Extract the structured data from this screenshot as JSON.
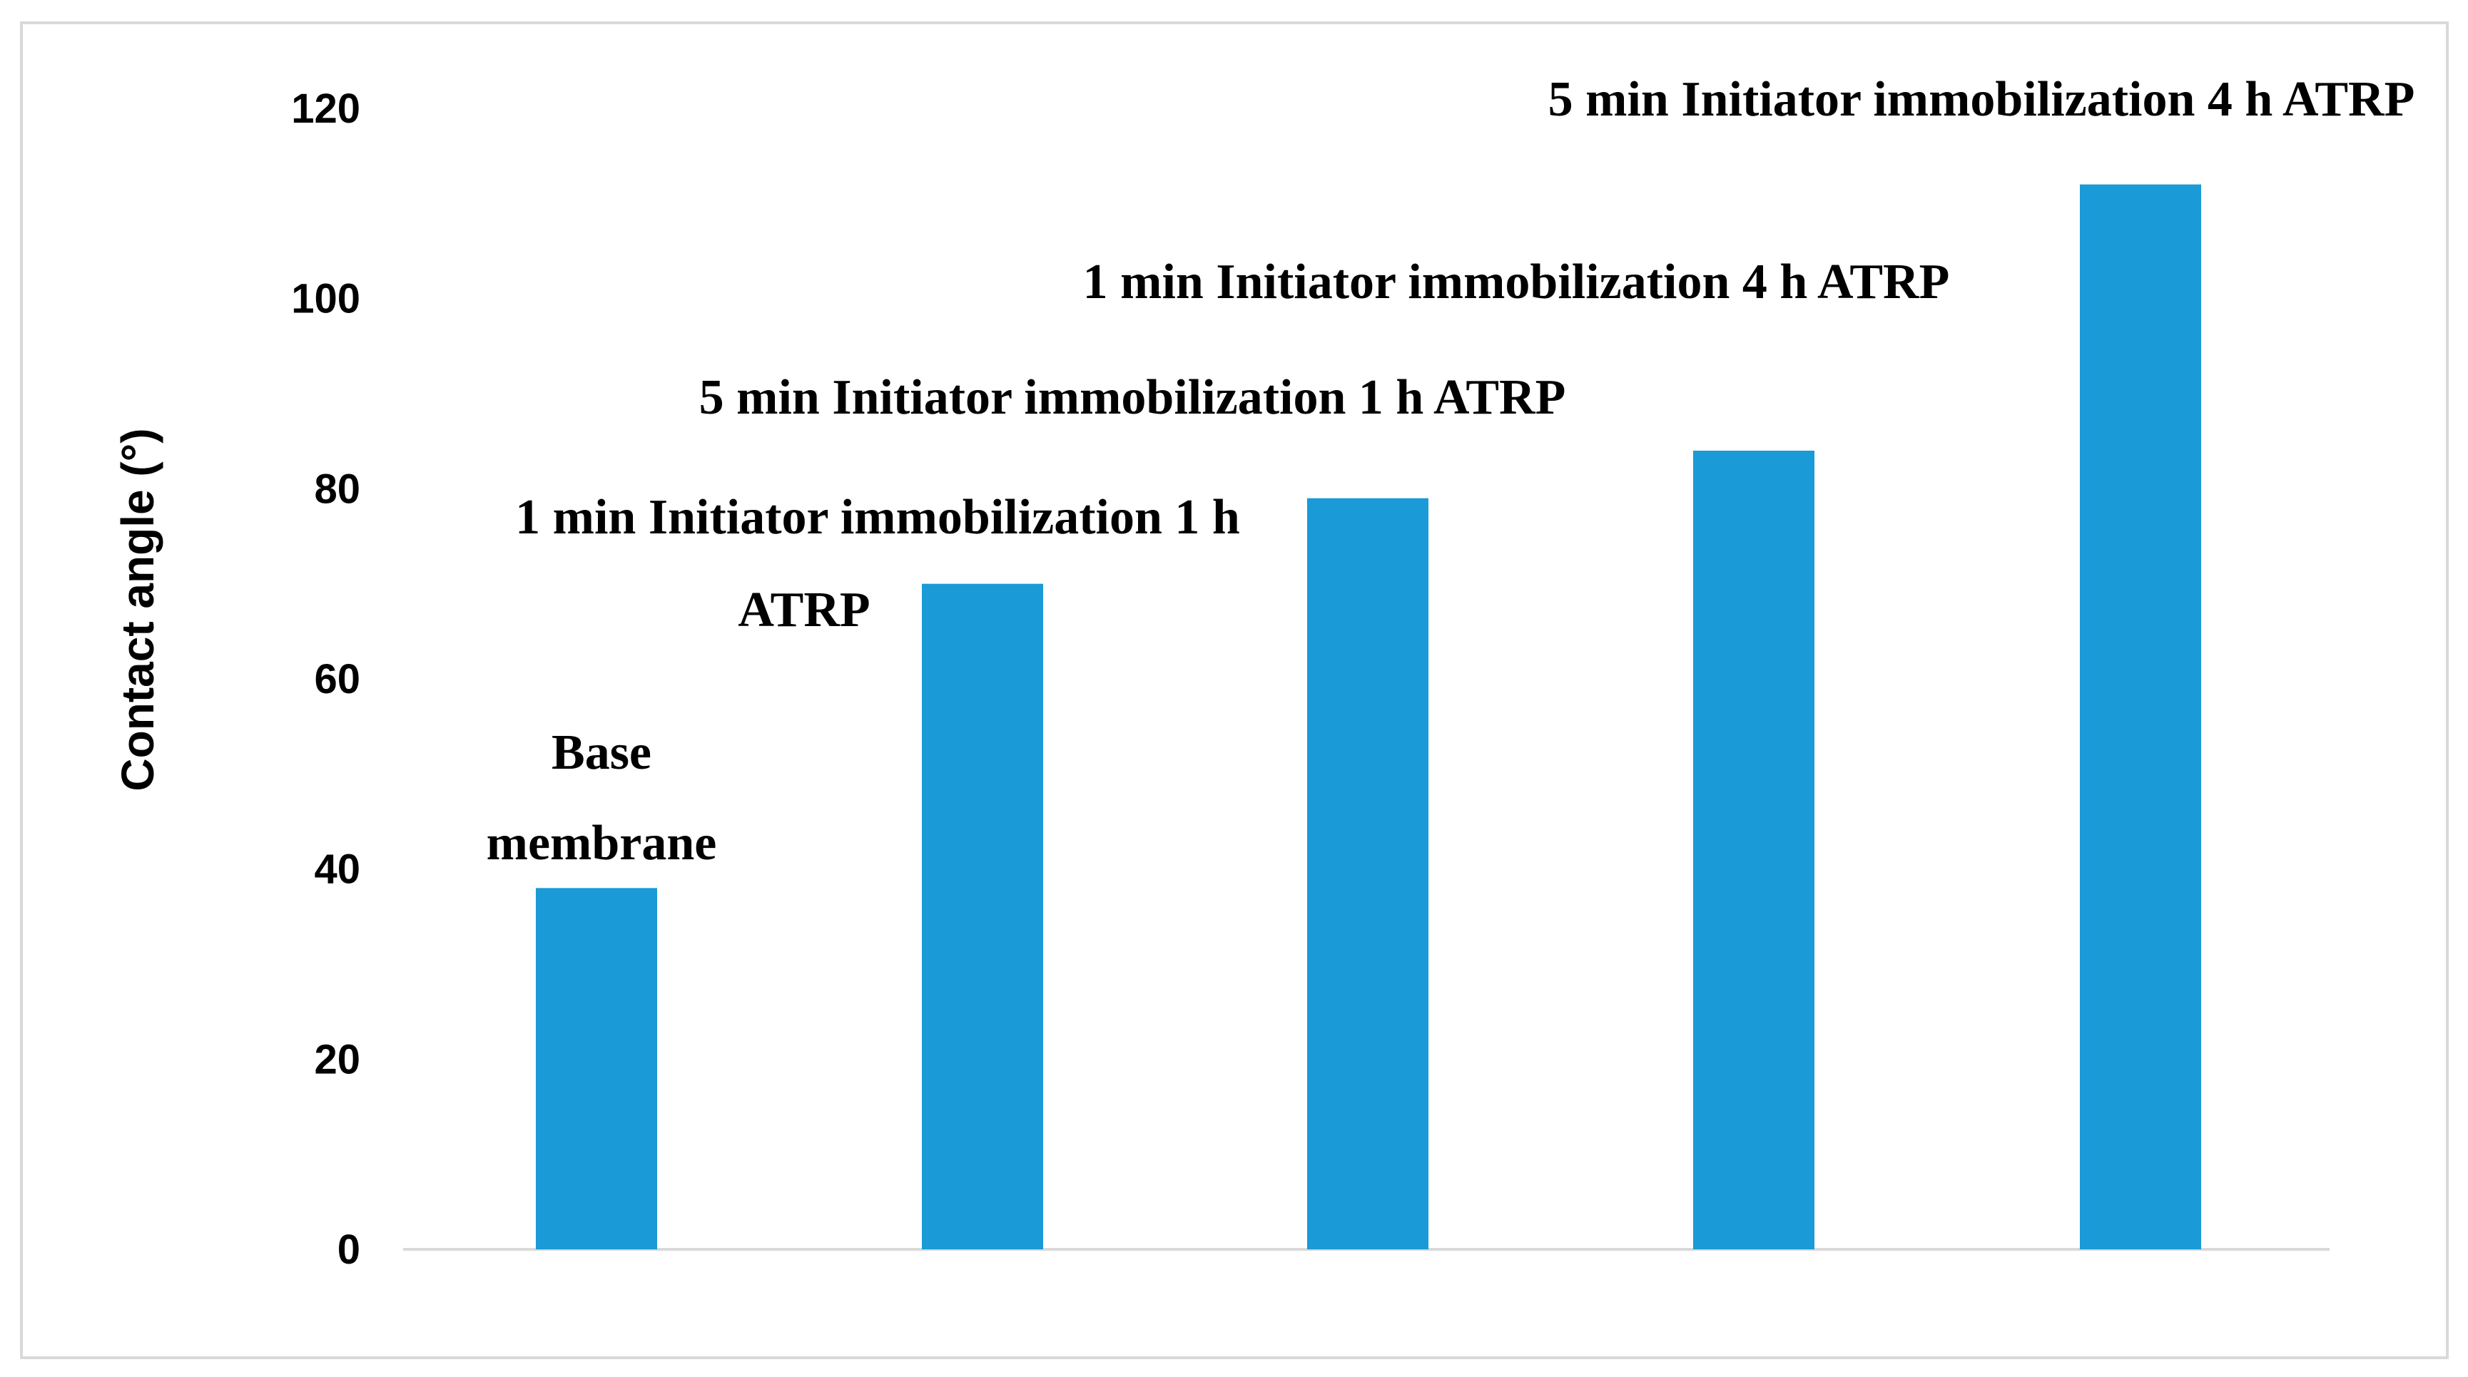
{
  "chart_data": {
    "type": "bar",
    "title": "",
    "xlabel": "",
    "ylabel": "Contact angle (°)",
    "ylim": [
      0,
      120
    ],
    "yticks": [
      0,
      20,
      40,
      60,
      80,
      100,
      120
    ],
    "grid": false,
    "legend": "none",
    "bar_color": "#1a9ad6",
    "axis_color": "#d9d9d9",
    "categories": [
      "Base membrane",
      "1 min Initiator immobilization 1 h ATRP",
      "5 min Initiator immobilization 1 h ATRP",
      "1 min Initiator immobilization 4 h ATRP",
      "5 min Initiator immobilization 4 h ATRP"
    ],
    "label_lines": [
      [
        "Base",
        "membrane"
      ],
      [
        "1 min Initiator immobilization 1 h",
        "ATRP"
      ],
      [
        "5 min Initiator immobilization 1 h ATRP"
      ],
      [
        "1 min Initiator immobilization 4 h ATRP"
      ],
      [
        "5 min Initiator immobilization 4 h ATRP"
      ]
    ],
    "values": [
      38,
      70,
      79,
      84,
      112
    ]
  }
}
